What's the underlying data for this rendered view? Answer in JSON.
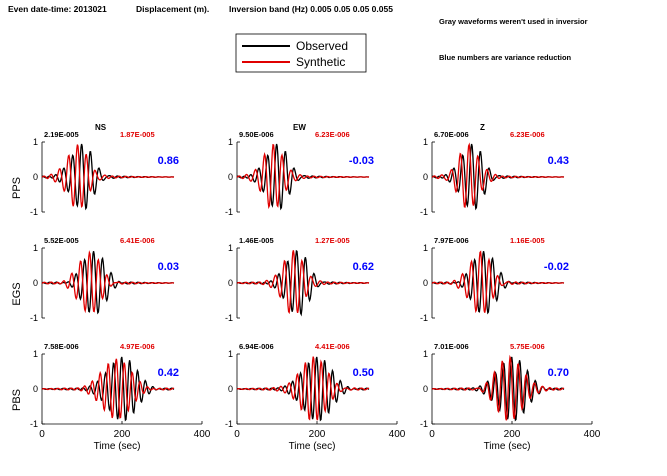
{
  "header": {
    "event_text": "Even date-time: 2013021",
    "overlap_text": "Displacement (m).",
    "band_text": "Inversion band (Hz)  0.005 0.05 0.05 0.055",
    "gray_note": "Gray waveforms weren't used in inversior",
    "blue_note": "Blue numbers are variance reduction"
  },
  "legend": {
    "items": [
      {
        "label": "Observed",
        "color": "#000000"
      },
      {
        "label": "Synthetic",
        "color": "#e00000"
      }
    ]
  },
  "colors": {
    "observed": "#000000",
    "synthetic": "#e00000",
    "variance": "#0000ff"
  },
  "chart_data": {
    "type": "line",
    "layout": "3x3 grid of seismogram panels",
    "columns": [
      "NS",
      "EW",
      "Z"
    ],
    "rows": [
      "PPS",
      "EGS",
      "PBS"
    ],
    "xlabel": "Time (sec)",
    "xlim": [
      0,
      400
    ],
    "ylim": [
      -1,
      1
    ],
    "xticks": [
      "0",
      "200",
      "400"
    ],
    "yticks": [
      "1",
      "0",
      "-1"
    ],
    "series": [
      {
        "name": "Observed"
      },
      {
        "name": "Synthetic"
      }
    ],
    "panels": [
      {
        "station": "PPS",
        "component": "NS",
        "obs_amp": "2.19E-005",
        "syn_amp": "1.87E-005",
        "variance_reduction": "0.86",
        "obs_peak_time": 100,
        "syn_peak_time": 88
      },
      {
        "station": "PPS",
        "component": "EW",
        "obs_amp": "9.50E-006",
        "syn_amp": "6.23E-006",
        "variance_reduction": "-0.03",
        "obs_peak_time": 100,
        "syn_peak_time": 90
      },
      {
        "station": "PPS",
        "component": "Z",
        "obs_amp": "6.70E-006",
        "syn_amp": "6.23E-006",
        "variance_reduction": "0.43",
        "obs_peak_time": 100,
        "syn_peak_time": 92
      },
      {
        "station": "EGS",
        "component": "NS",
        "obs_amp": "5.52E-005",
        "syn_amp": "6.41E-006",
        "variance_reduction": "0.03",
        "obs_peak_time": 130,
        "syn_peak_time": 118
      },
      {
        "station": "EGS",
        "component": "EW",
        "obs_amp": "1.46E-005",
        "syn_amp": "1.27E-005",
        "variance_reduction": "0.62",
        "obs_peak_time": 150,
        "syn_peak_time": 140
      },
      {
        "station": "EGS",
        "component": "Z",
        "obs_amp": "7.97E-006",
        "syn_amp": "1.16E-005",
        "variance_reduction": "-0.02",
        "obs_peak_time": 130,
        "syn_peak_time": 120
      },
      {
        "station": "PBS",
        "component": "NS",
        "obs_amp": "7.58E-006",
        "syn_amp": "4.97E-006",
        "variance_reduction": "0.42",
        "obs_peak_time": 200,
        "syn_peak_time": 185
      },
      {
        "station": "PBS",
        "component": "EW",
        "obs_amp": "6.94E-006",
        "syn_amp": "4.41E-006",
        "variance_reduction": "0.50",
        "obs_peak_time": 200,
        "syn_peak_time": 190
      },
      {
        "station": "PBS",
        "component": "Z",
        "obs_amp": "7.01E-006",
        "syn_amp": "5.75E-006",
        "variance_reduction": "0.70",
        "obs_peak_time": 200,
        "syn_peak_time": 195
      }
    ]
  }
}
